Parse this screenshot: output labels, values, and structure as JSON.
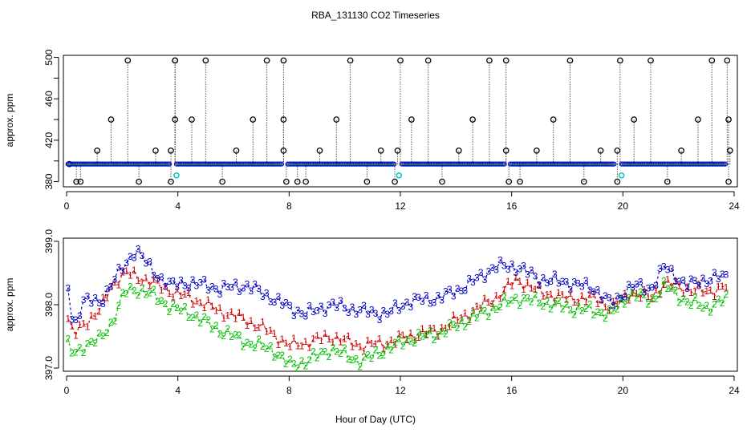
{
  "title": "RBA_131130  CO2 Timeseries",
  "xlabel": "Hour of Day (UTC)",
  "colors": {
    "axis": "#000000",
    "s1": "#d00000",
    "s2": "#00c000",
    "s3": "#0000c0",
    "flag": "#000000",
    "cyan": "#00c8c8"
  },
  "chart_data": [
    {
      "type": "scatter",
      "title": "RBA_131130  CO2 Timeseries",
      "xlabel": "",
      "ylabel": "approx. ppm",
      "xlim": [
        0,
        24
      ],
      "ylim": [
        375,
        502
      ],
      "xticks": [
        0,
        4,
        8,
        12,
        16,
        20,
        24
      ],
      "yticks": [
        380,
        420,
        460,
        500
      ],
      "yticks_minor": [
        400,
        440,
        480
      ],
      "baseline": 397,
      "spike_high": [
        0.1,
        0.35,
        1.1,
        1.6,
        2.2,
        2.6,
        3.2,
        3.75,
        3.9,
        4.5,
        5.0,
        5.6,
        6.1,
        6.7,
        7.2,
        7.8,
        8.3,
        8.6,
        9.1,
        9.7,
        10.2,
        10.8,
        11.3,
        11.8,
        12.4,
        13.0,
        13.5,
        14.1,
        14.6,
        15.2,
        15.8,
        16.3,
        16.9,
        17.5,
        18.1,
        18.6,
        19.2,
        19.8,
        20.4,
        21.0,
        21.6,
        22.1,
        22.7,
        23.2,
        23.75
      ],
      "spike_values": [
        397,
        380,
        410,
        440,
        497,
        380,
        410,
        380,
        497,
        440,
        497,
        380,
        410,
        440,
        497,
        410,
        380,
        380,
        410,
        440,
        497,
        380,
        410,
        380,
        440,
        497,
        380,
        410,
        440,
        497,
        410,
        380,
        410,
        440,
        497,
        380,
        410,
        410,
        440,
        497,
        380,
        410,
        440,
        497,
        497
      ],
      "extra_points": [
        {
          "x": 0.5,
          "y": 380
        },
        {
          "x": 3.75,
          "y": 410
        },
        {
          "x": 3.9,
          "y": 440
        },
        {
          "x": 3.9,
          "y": 497
        },
        {
          "x": 7.8,
          "y": 440
        },
        {
          "x": 7.8,
          "y": 497
        },
        {
          "x": 7.9,
          "y": 380
        },
        {
          "x": 11.9,
          "y": 410
        },
        {
          "x": 12.0,
          "y": 497
        },
        {
          "x": 15.8,
          "y": 497
        },
        {
          "x": 15.9,
          "y": 380
        },
        {
          "x": 19.8,
          "y": 380
        },
        {
          "x": 19.9,
          "y": 497
        },
        {
          "x": 23.8,
          "y": 380
        },
        {
          "x": 23.8,
          "y": 440
        },
        {
          "x": 23.85,
          "y": 410
        }
      ],
      "cyan_points": [
        {
          "x": 3.95,
          "y": 386
        },
        {
          "x": 11.95,
          "y": 386
        },
        {
          "x": 19.95,
          "y": 386
        }
      ]
    },
    {
      "type": "line",
      "title": "",
      "xlabel": "Hour of Day (UTC)",
      "ylabel": "approx. ppm",
      "xlim": [
        0,
        24
      ],
      "ylim": [
        396.95,
        399.05
      ],
      "xticks": [
        0,
        4,
        8,
        12,
        16,
        20,
        24
      ],
      "yticks": [
        397.0,
        398.0,
        399.0
      ],
      "ytick_labels": [
        "397.0",
        "398.0",
        "399.0"
      ],
      "anchor_hours": [
        0,
        0.25,
        0.6,
        1.2,
        1.6,
        2.1,
        2.5,
        3.1,
        3.8,
        4.5,
        5.5,
        6.5,
        7.4,
        8.0,
        8.6,
        9.5,
        10.6,
        11.5,
        12.3,
        13.4,
        14.4,
        15.4,
        16.2,
        17.0,
        18.0,
        19.0,
        19.6,
        20.3,
        21.0,
        21.5,
        22.3,
        23.0,
        23.8
      ],
      "series": [
        {
          "name": "1",
          "marker": "1",
          "values": [
            397.85,
            397.5,
            397.7,
            397.9,
            398.3,
            398.5,
            398.45,
            398.35,
            398.2,
            398.1,
            397.9,
            397.75,
            397.55,
            397.35,
            397.4,
            397.5,
            397.35,
            397.4,
            397.5,
            397.6,
            397.85,
            398.1,
            398.4,
            398.2,
            398.1,
            398.1,
            397.95,
            398.2,
            398.1,
            398.35,
            398.25,
            398.2,
            398.3
          ]
        },
        {
          "name": "2",
          "marker": "2",
          "values": [
            397.4,
            397.2,
            397.35,
            397.45,
            397.7,
            398.2,
            398.25,
            398.15,
            397.95,
            397.85,
            397.6,
            397.4,
            397.3,
            397.05,
            397.1,
            397.3,
            397.1,
            397.3,
            397.45,
            397.55,
            397.75,
            397.95,
            398.1,
            398.05,
            397.95,
            397.9,
            397.85,
            398.2,
            398.05,
            398.3,
            398.05,
            397.95,
            398.1
          ]
        },
        {
          "name": "3",
          "marker": "3",
          "values": [
            398.4,
            397.6,
            398.1,
            398.0,
            398.35,
            398.6,
            398.9,
            398.5,
            398.3,
            398.35,
            398.25,
            398.3,
            398.1,
            397.95,
            397.85,
            398.0,
            397.9,
            397.85,
            398.05,
            398.1,
            398.3,
            398.6,
            398.6,
            398.4,
            398.35,
            398.25,
            398.0,
            398.3,
            398.25,
            398.6,
            398.3,
            398.4,
            398.45
          ]
        }
      ]
    }
  ]
}
